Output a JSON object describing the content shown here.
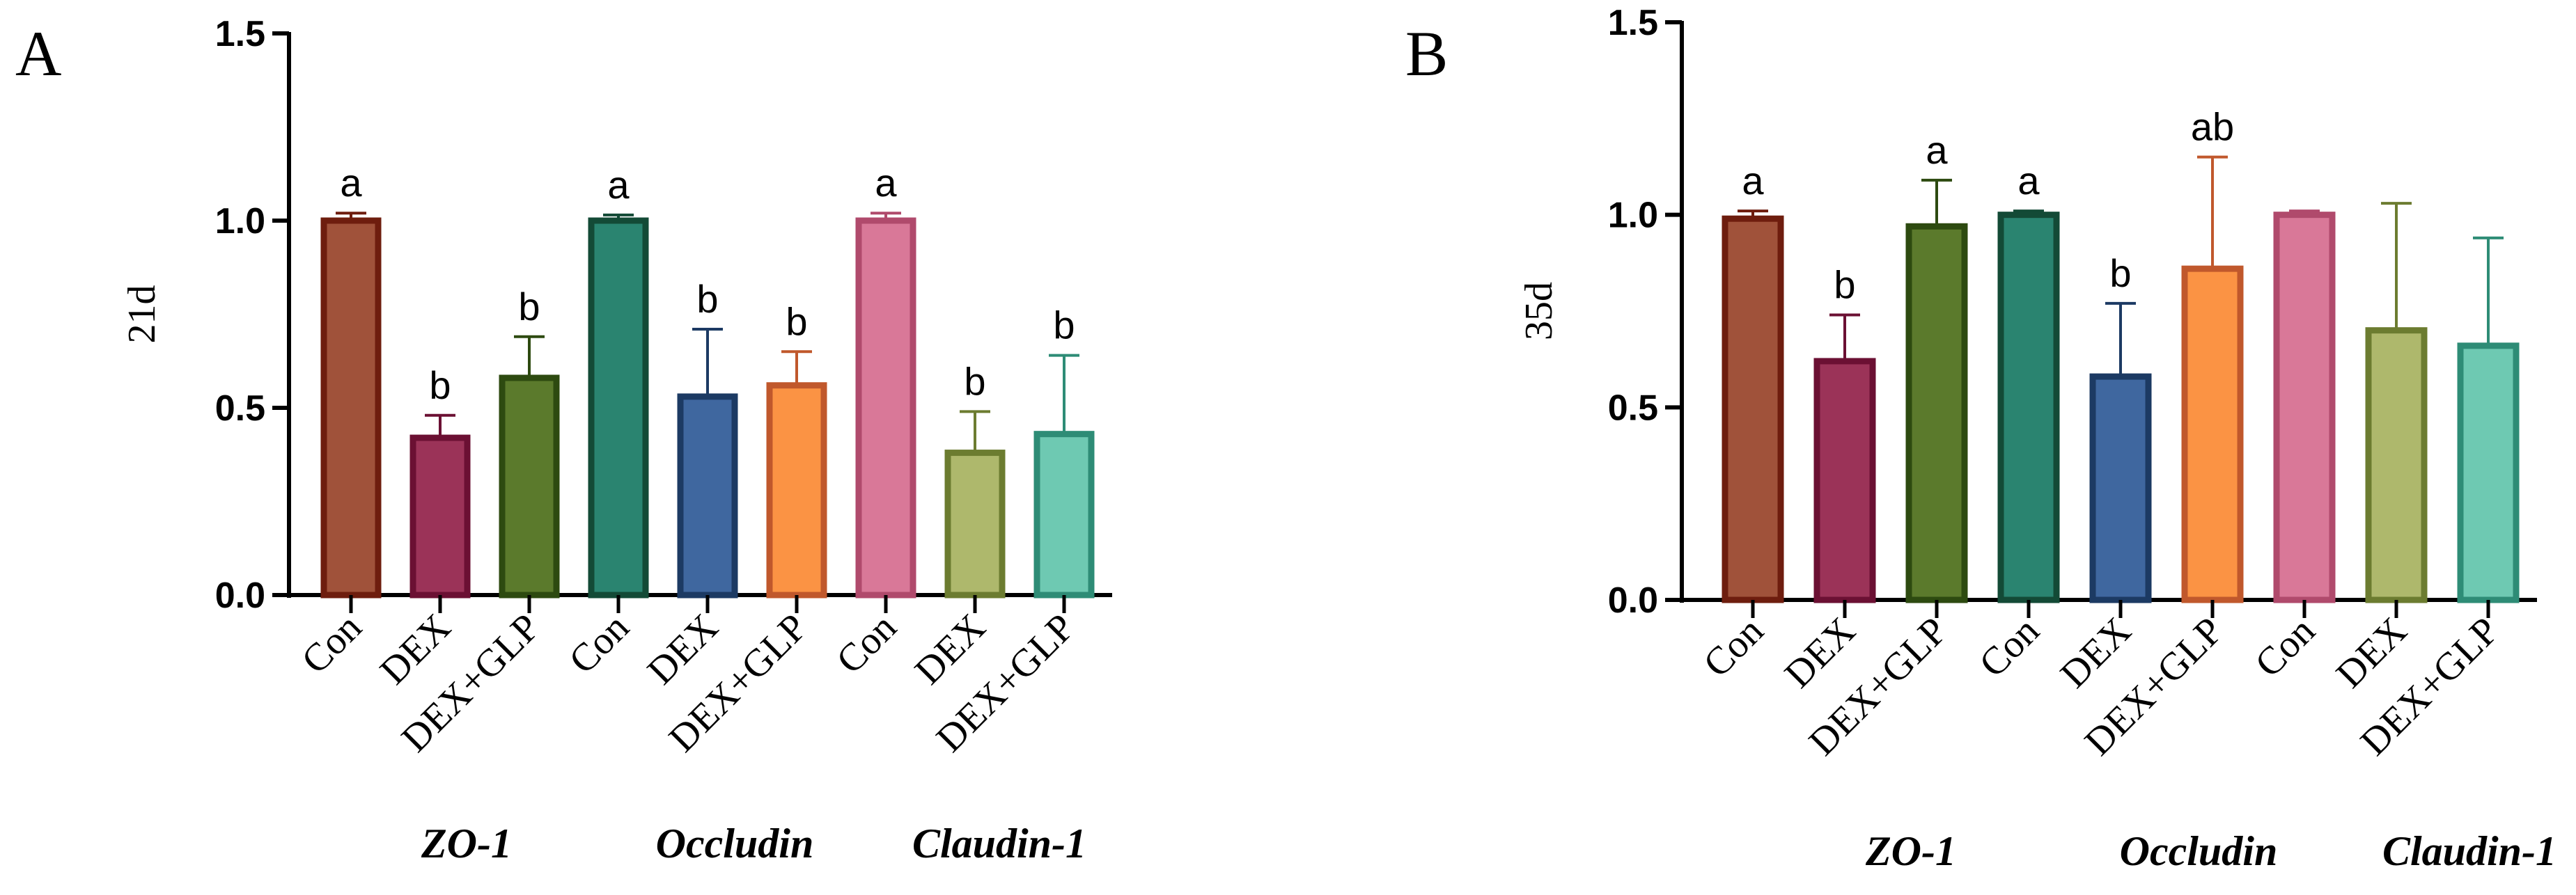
{
  "chart_data": [
    {
      "type": "bar",
      "panel": "A",
      "ylabel": "21d",
      "xlabel": "",
      "ylim": [
        0,
        1.5
      ],
      "yticks": [
        "0.0",
        "0.5",
        "1.0",
        "1.5"
      ],
      "categories": [
        "Con",
        "DEX",
        "DEX+GLP",
        "Con",
        "DEX",
        "DEX+GLP",
        "Con",
        "DEX",
        "DEX+GLP"
      ],
      "groups": [
        "ZO-1",
        "Occludin",
        "Claudin-1"
      ],
      "values": [
        1.0,
        0.42,
        0.58,
        1.0,
        0.53,
        0.56,
        1.0,
        0.38,
        0.43
      ],
      "errors": [
        0.02,
        0.06,
        0.11,
        0.015,
        0.18,
        0.09,
        0.02,
        0.11,
        0.21
      ],
      "significance": [
        "a",
        "b",
        "b",
        "a",
        "b",
        "b",
        "a",
        "b",
        "b"
      ],
      "fill_colors": [
        "#a0523a",
        "#9b3358",
        "#5b7a2c",
        "#2a8470",
        "#3f679f",
        "#fb9344",
        "#d97898",
        "#aeb86c",
        "#6ec9b2"
      ],
      "edge_colors": [
        "#6e1d0e",
        "#6b1033",
        "#2d4a10",
        "#134a36",
        "#1c3a63",
        "#c0582c",
        "#b04a6c",
        "#6c7c30",
        "#2e8c76"
      ]
    },
    {
      "type": "bar",
      "panel": "B",
      "ylabel": "35d",
      "xlabel": "",
      "ylim": [
        0,
        1.5
      ],
      "yticks": [
        "0.0",
        "0.5",
        "1.0",
        "1.5"
      ],
      "categories": [
        "Con",
        "DEX",
        "DEX+GLP",
        "Con",
        "DEX",
        "DEX+GLP",
        "Con",
        "DEX",
        "DEX+GLP"
      ],
      "groups": [
        "ZO-1",
        "Occludin",
        "Claudin-1"
      ],
      "values": [
        0.99,
        0.62,
        0.97,
        1.0,
        0.58,
        0.86,
        1.0,
        0.7,
        0.66
      ],
      "errors": [
        0.02,
        0.12,
        0.12,
        0.01,
        0.19,
        0.29,
        0.01,
        0.33,
        0.28
      ],
      "significance": [
        "a",
        "b",
        "a",
        "a",
        "b",
        "ab",
        "",
        "",
        ""
      ],
      "fill_colors": [
        "#a0523a",
        "#9b3358",
        "#5b7a2c",
        "#2a8470",
        "#3f679f",
        "#fb9344",
        "#d97898",
        "#aeb86c",
        "#6ec9b2"
      ],
      "edge_colors": [
        "#6e1d0e",
        "#6b1033",
        "#2d4a10",
        "#134a36",
        "#1c3a63",
        "#c0582c",
        "#b04a6c",
        "#6c7c30",
        "#2e8c76"
      ]
    }
  ]
}
